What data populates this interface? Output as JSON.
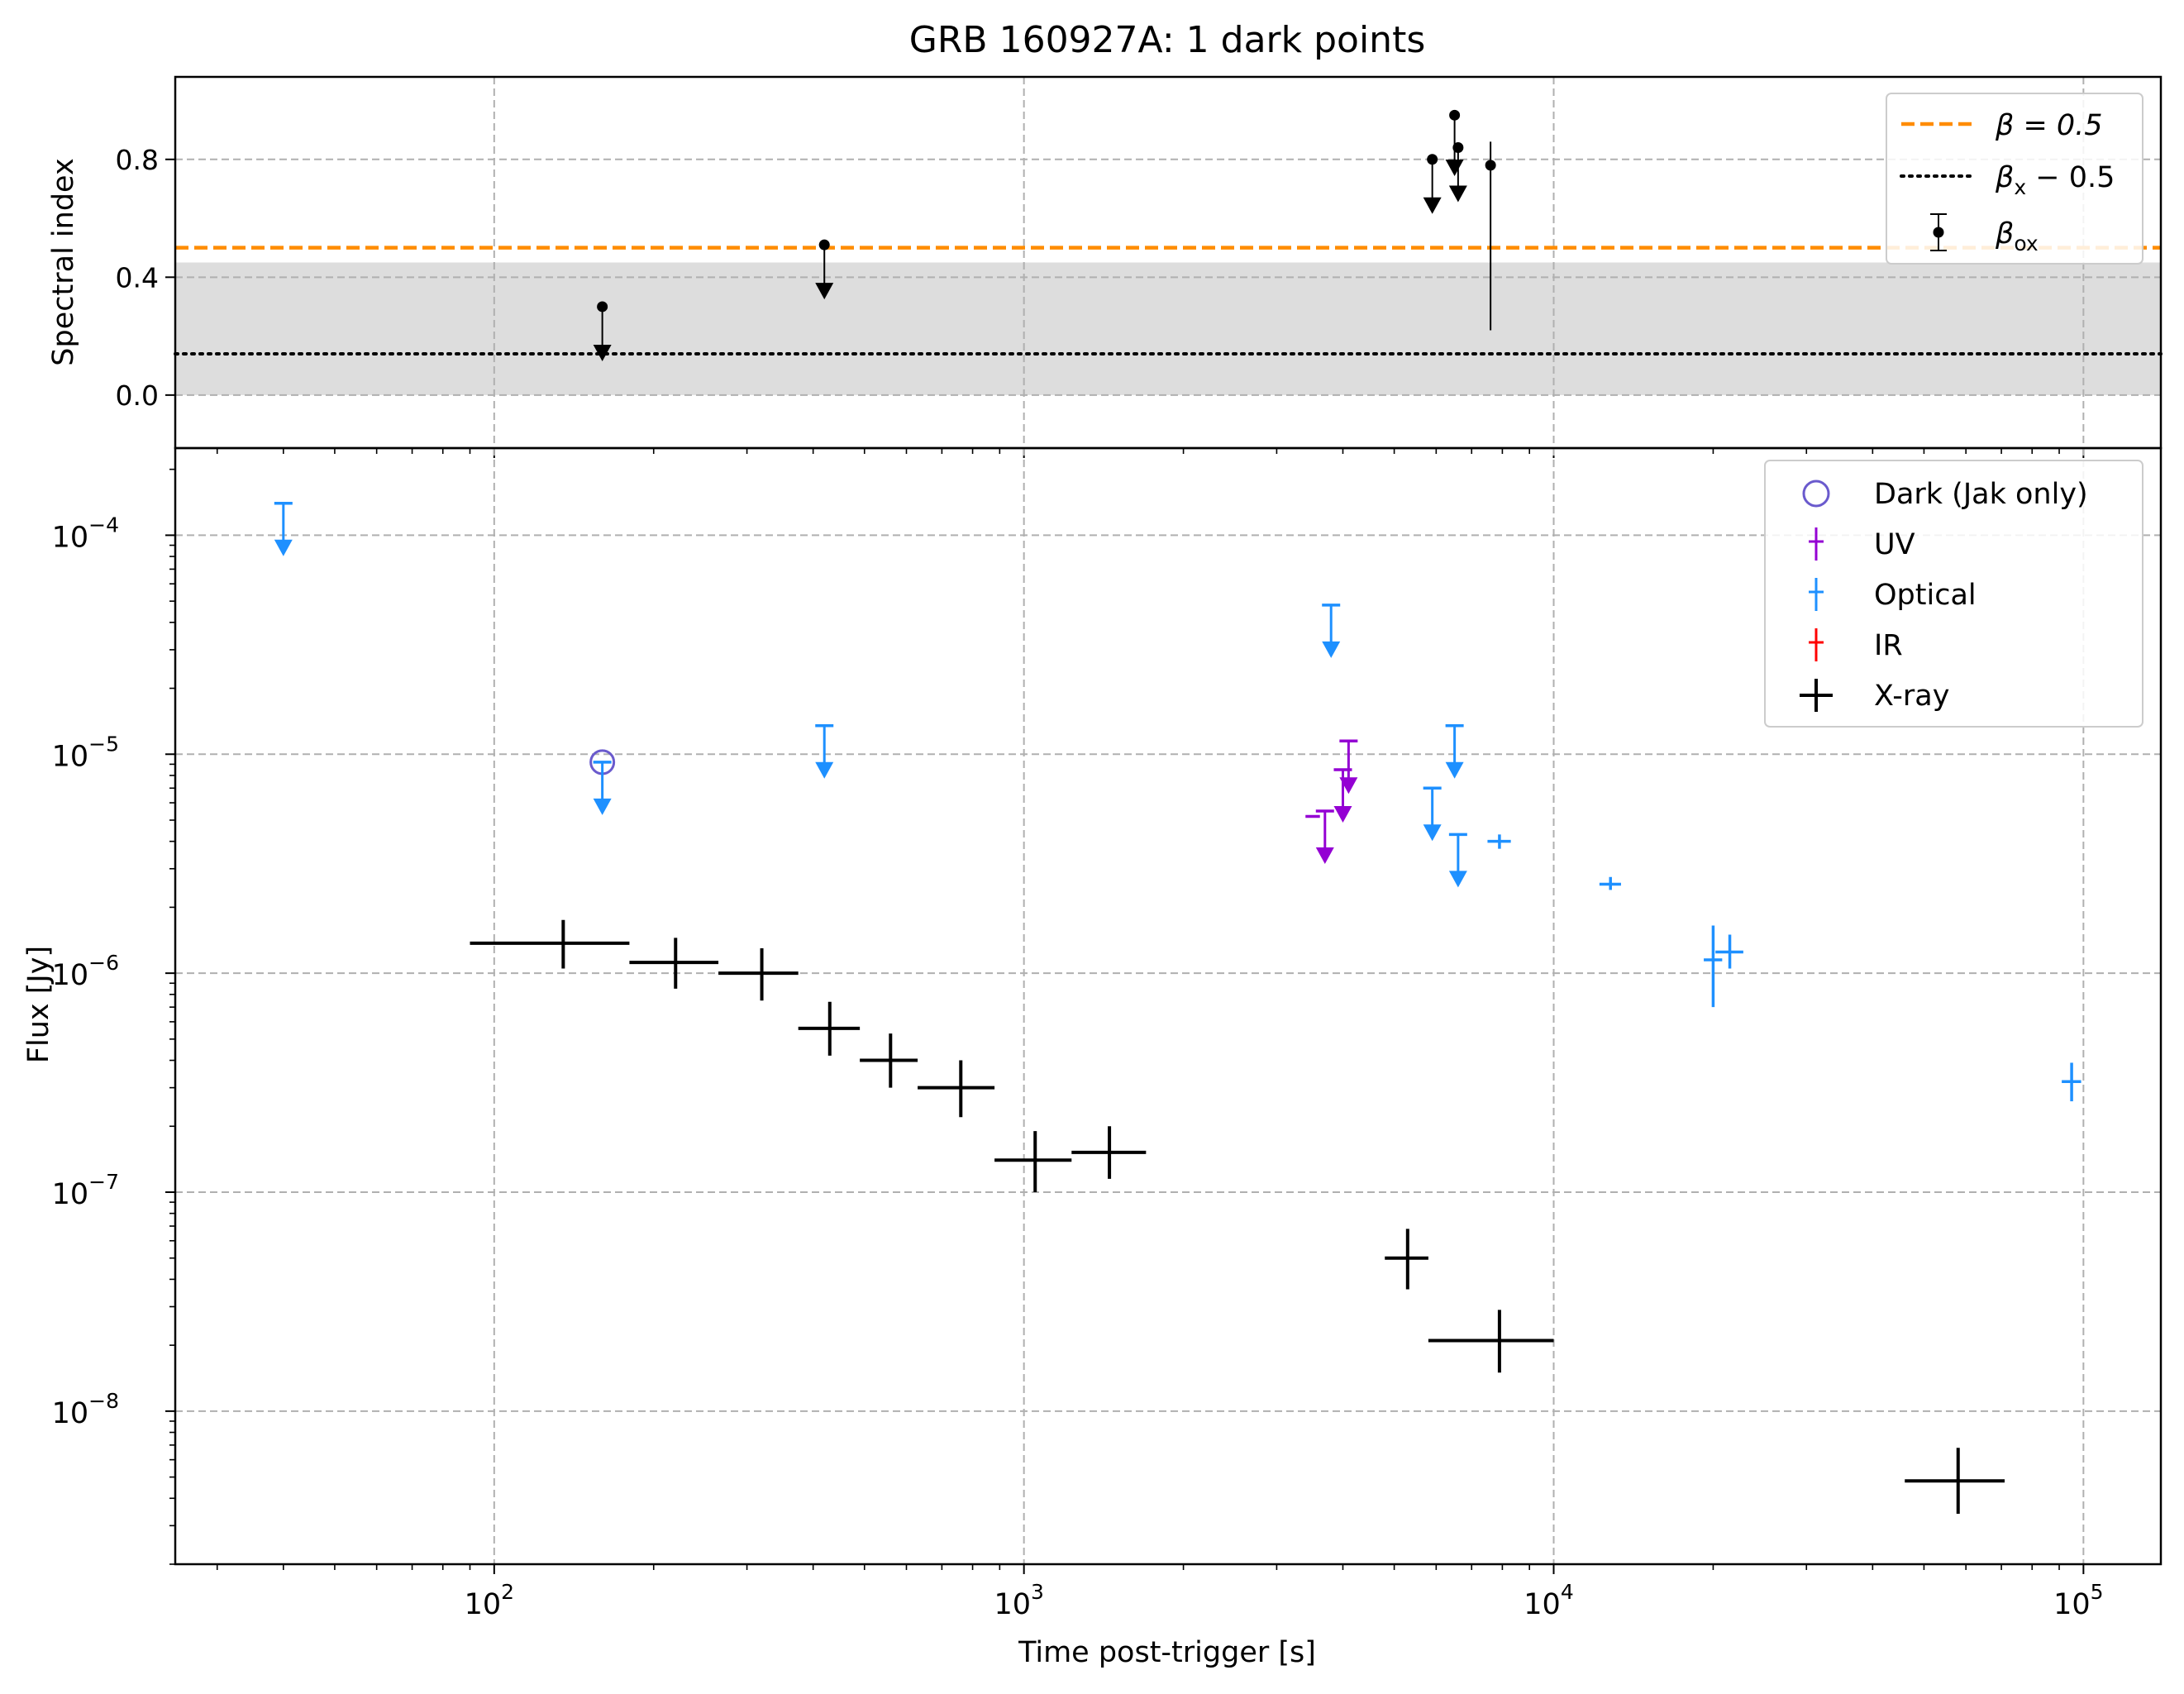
{
  "figure": {
    "title": "GRB 160927A: 1 dark points",
    "xlabel": "Time post-trigger [s]"
  },
  "chart_data": [
    {
      "type": "scatter",
      "panel": "top",
      "ylabel": "Spectral index",
      "xscale": "log",
      "xlim": [
        25,
        140000
      ],
      "ylim": [
        -0.18,
        1.08
      ],
      "yticks": [
        0.0,
        0.4,
        0.8
      ],
      "ytick_labels": [
        "0.0",
        "0.4",
        "0.8"
      ],
      "grid": true,
      "legend_position": "top-right",
      "shaded_band": {
        "y0": 0.0,
        "y1": 0.45,
        "color": "#dddddd"
      },
      "hlines": [
        {
          "name": "β = 0.5",
          "label_main": "β = 0.5",
          "y": 0.5,
          "style": "dashed",
          "color": "#ff8c00"
        },
        {
          "name": "βx − 0.5",
          "label_main": "β",
          "label_sub": "x",
          "label_rest": " − 0.5",
          "y": 0.14,
          "style": "dotted",
          "color": "#000000"
        }
      ],
      "series": [
        {
          "name": "βox",
          "label_main": "β",
          "label_sub": "ox",
          "color": "#000000",
          "points": [
            {
              "x": 160,
              "y": 0.3,
              "upper_limit": true
            },
            {
              "x": 420,
              "y": 0.51,
              "upper_limit": true
            },
            {
              "x": 5900,
              "y": 0.8,
              "upper_limit": true
            },
            {
              "x": 6500,
              "y": 0.95,
              "upper_limit": true,
              "arrow_to": 0.76
            },
            {
              "x": 6600,
              "y": 0.84,
              "upper_limit": true
            },
            {
              "x": 7600,
              "y": 0.78,
              "err_low": 0.56,
              "err_high": 0.08
            }
          ]
        }
      ]
    },
    {
      "type": "scatter",
      "panel": "bottom",
      "ylabel": "Flux [Jy]",
      "xscale": "log",
      "yscale": "log",
      "xlim": [
        25,
        140000
      ],
      "ylim": [
        2e-09,
        0.00025
      ],
      "yticks": [
        1e-08,
        1e-07,
        1e-06,
        1e-05,
        0.0001
      ],
      "ytick_labels": [
        {
          "base": "10",
          "exp": "−8"
        },
        {
          "base": "10",
          "exp": "−7"
        },
        {
          "base": "10",
          "exp": "−6"
        },
        {
          "base": "10",
          "exp": "−5"
        },
        {
          "base": "10",
          "exp": "−4"
        }
      ],
      "xticks": [
        100,
        1000,
        10000,
        100000
      ],
      "xtick_labels": [
        {
          "base": "10",
          "exp": "2"
        },
        {
          "base": "10",
          "exp": "3"
        },
        {
          "base": "10",
          "exp": "4"
        },
        {
          "base": "10",
          "exp": "5"
        }
      ],
      "grid": true,
      "legend_position": "top-right",
      "series": [
        {
          "name": "Dark (Jak only)",
          "color": "#6a5acd",
          "marker": "open-circle",
          "points": [
            {
              "x": 160,
              "y": 9.2e-06
            }
          ]
        },
        {
          "name": "UV",
          "color": "#9400d3",
          "points": [
            {
              "x": 3600,
              "y": 5.2e-06,
              "xerr_only": true,
              "x0": 3400,
              "x1": 3620
            },
            {
              "x": 3700,
              "y": 5.5e-06,
              "upper_limit": true
            },
            {
              "x": 4000,
              "y": 8.5e-06,
              "upper_limit": true
            },
            {
              "x": 4100,
              "y": 1.15e-05,
              "upper_limit": true
            }
          ]
        },
        {
          "name": "Optical",
          "color": "#1e90ff",
          "points": [
            {
              "x": 40,
              "y": 0.00014,
              "upper_limit": true
            },
            {
              "x": 160,
              "y": 9.2e-06,
              "upper_limit": true
            },
            {
              "x": 420,
              "y": 1.35e-05,
              "upper_limit": true
            },
            {
              "x": 3800,
              "y": 4.8e-05,
              "upper_limit": true
            },
            {
              "x": 5900,
              "y": 7e-06,
              "upper_limit": true
            },
            {
              "x": 6500,
              "y": 1.35e-05,
              "upper_limit": true
            },
            {
              "x": 6600,
              "y": 4.3e-06,
              "upper_limit": true
            },
            {
              "x": 7900,
              "y": 4e-06,
              "x0": 7500,
              "x1": 8300,
              "y0": 3.7e-06,
              "y1": 4.3e-06
            },
            {
              "x": 12800,
              "y": 2.55e-06,
              "x0": 12200,
              "x1": 13400,
              "y0": 2.4e-06,
              "y1": 2.75e-06
            },
            {
              "x": 20000,
              "y": 1.15e-06,
              "x0": 19200,
              "x1": 20800,
              "y0": 7e-07,
              "y1": 1.65e-06
            },
            {
              "x": 21500,
              "y": 1.25e-06,
              "x0": 20200,
              "x1": 22800,
              "y0": 1.05e-06,
              "y1": 1.5e-06
            },
            {
              "x": 95000,
              "y": 3.2e-07,
              "x0": 91000,
              "x1": 99000,
              "y0": 2.6e-07,
              "y1": 3.9e-07
            }
          ]
        },
        {
          "name": "IR",
          "color": "#ff0000",
          "points": []
        },
        {
          "name": "X-ray",
          "color": "#000000",
          "points": [
            {
              "x": 135,
              "y": 1.37e-06,
              "x0": 90,
              "x1": 180,
              "y0": 1.05e-06,
              "y1": 1.75e-06
            },
            {
              "x": 220,
              "y": 1.12e-06,
              "x0": 180,
              "x1": 265,
              "y0": 8.5e-07,
              "y1": 1.45e-06
            },
            {
              "x": 320,
              "y": 1e-06,
              "x0": 265,
              "x1": 375,
              "y0": 7.5e-07,
              "y1": 1.3e-06
            },
            {
              "x": 430,
              "y": 5.6e-07,
              "x0": 375,
              "x1": 490,
              "y0": 4.2e-07,
              "y1": 7.4e-07
            },
            {
              "x": 560,
              "y": 4e-07,
              "x0": 490,
              "x1": 630,
              "y0": 3e-07,
              "y1": 5.3e-07
            },
            {
              "x": 760,
              "y": 3e-07,
              "x0": 630,
              "x1": 880,
              "y0": 2.2e-07,
              "y1": 4e-07
            },
            {
              "x": 1050,
              "y": 1.4e-07,
              "x0": 880,
              "x1": 1230,
              "y0": 1e-07,
              "y1": 1.9e-07
            },
            {
              "x": 1450,
              "y": 1.52e-07,
              "x0": 1230,
              "x1": 1700,
              "y0": 1.15e-07,
              "y1": 2e-07
            },
            {
              "x": 5300,
              "y": 5e-08,
              "x0": 4800,
              "x1": 5800,
              "y0": 3.6e-08,
              "y1": 6.8e-08
            },
            {
              "x": 7900,
              "y": 2.1e-08,
              "x0": 5800,
              "x1": 10000,
              "y0": 1.5e-08,
              "y1": 2.9e-08
            },
            {
              "x": 58000,
              "y": 4.8e-09,
              "x0": 46000,
              "x1": 71000,
              "y0": 3.4e-09,
              "y1": 6.8e-09
            }
          ]
        }
      ]
    }
  ]
}
